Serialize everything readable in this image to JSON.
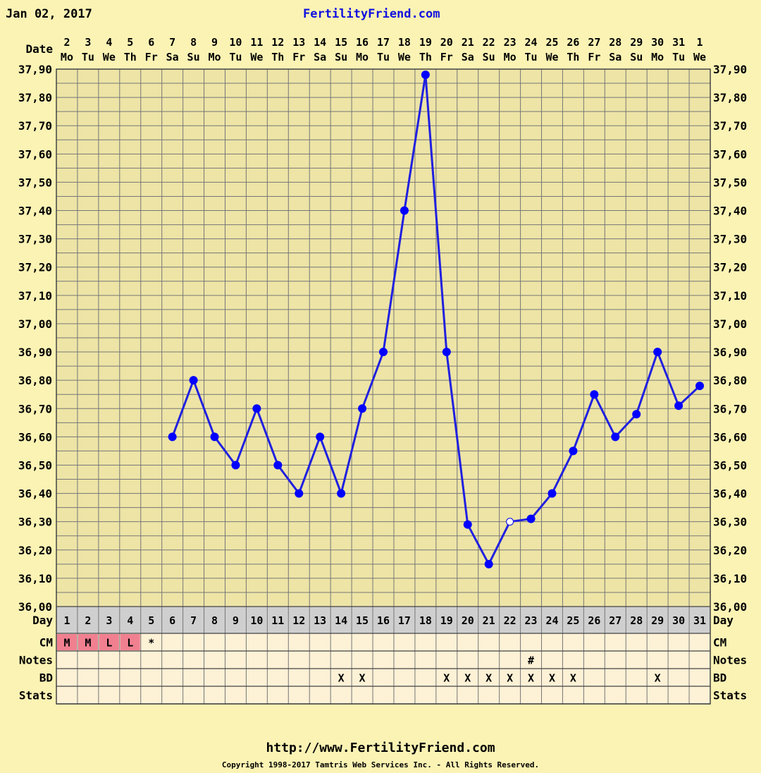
{
  "header": {
    "date": "Jan 02, 2017",
    "site": "FertilityFriend.com"
  },
  "footer": {
    "url": "http://www.FertilityFriend.com",
    "copyright": "Copyright 1998-2017 Tamtris Web Services Inc. - All Rights Reserved."
  },
  "colors": {
    "background": "#fbf3b4",
    "grid_area": "#ede4a6",
    "line": "#2020e0",
    "marker": "#0000ff",
    "day_row": "#cfcfcf",
    "cm_fill": "#f08090",
    "table_fill": "#fdf1d6"
  },
  "chart_data": {
    "type": "line",
    "row_labels": {
      "date": "Date",
      "day": "Day",
      "cm": "CM",
      "notes": "Notes",
      "bd": "BD",
      "stats": "Stats"
    },
    "dates": [
      "2",
      "3",
      "4",
      "5",
      "6",
      "7",
      "8",
      "9",
      "10",
      "11",
      "12",
      "13",
      "14",
      "15",
      "16",
      "17",
      "18",
      "19",
      "20",
      "21",
      "22",
      "23",
      "24",
      "25",
      "26",
      "27",
      "28",
      "29",
      "30",
      "31",
      "1"
    ],
    "weekdays": [
      "Mo",
      "Tu",
      "We",
      "Th",
      "Fr",
      "Sa",
      "Su",
      "Mo",
      "Tu",
      "We",
      "Th",
      "Fr",
      "Sa",
      "Su",
      "Mo",
      "Tu",
      "We",
      "Th",
      "Fr",
      "Sa",
      "Su",
      "Mo",
      "Tu",
      "We",
      "Th",
      "Fr",
      "Sa",
      "Su",
      "Mo",
      "Tu",
      "We"
    ],
    "cycle_days": [
      "1",
      "2",
      "3",
      "4",
      "5",
      "6",
      "7",
      "8",
      "9",
      "10",
      "11",
      "12",
      "13",
      "14",
      "15",
      "16",
      "17",
      "18",
      "19",
      "20",
      "21",
      "22",
      "23",
      "24",
      "25",
      "26",
      "27",
      "28",
      "29",
      "30",
      "31"
    ],
    "ylim": [
      36.0,
      37.9
    ],
    "y_ticks": [
      "36,00",
      "36,10",
      "36,20",
      "36,30",
      "36,40",
      "36,50",
      "36,60",
      "36,70",
      "36,80",
      "36,90",
      "37,00",
      "37,10",
      "37,20",
      "37,30",
      "37,40",
      "37,50",
      "37,60",
      "37,70",
      "37,80",
      "37,90"
    ],
    "temperatures": [
      null,
      null,
      null,
      null,
      null,
      36.6,
      36.8,
      36.6,
      36.5,
      36.7,
      36.5,
      36.4,
      36.6,
      36.4,
      36.7,
      36.9,
      37.4,
      37.88,
      36.9,
      36.29,
      36.15,
      36.3,
      36.31,
      36.4,
      36.55,
      36.75,
      36.6,
      36.68,
      36.9,
      36.71,
      36.78
    ],
    "open_markers": [
      21
    ],
    "cm": [
      "M",
      "M",
      "L",
      "L",
      "*",
      "",
      "",
      "",
      "",
      "",
      "",
      "",
      "",
      "",
      "",
      "",
      "",
      "",
      "",
      "",
      "",
      "",
      "",
      "",
      "",
      "",
      "",
      "",
      "",
      "",
      ""
    ],
    "notes": [
      "",
      "",
      "",
      "",
      "",
      "",
      "",
      "",
      "",
      "",
      "",
      "",
      "",
      "",
      "",
      "",
      "",
      "",
      "",
      "",
      "",
      "",
      "#",
      "",
      "",
      "",
      "",
      "",
      "",
      "",
      ""
    ],
    "bd": [
      "",
      "",
      "",
      "",
      "",
      "",
      "",
      "",
      "",
      "",
      "",
      "",
      "",
      "X",
      "X",
      "",
      "",
      "",
      "X",
      "X",
      "X",
      "X",
      "X",
      "X",
      "X",
      "",
      "",
      "",
      "X",
      "",
      ""
    ],
    "stats": [
      "",
      "",
      "",
      "",
      "",
      "",
      "",
      "",
      "",
      "",
      "",
      "",
      "",
      "",
      "",
      "",
      "",
      "",
      "",
      "",
      "",
      "",
      "",
      "",
      "",
      "",
      "",
      "",
      "",
      "",
      ""
    ]
  }
}
